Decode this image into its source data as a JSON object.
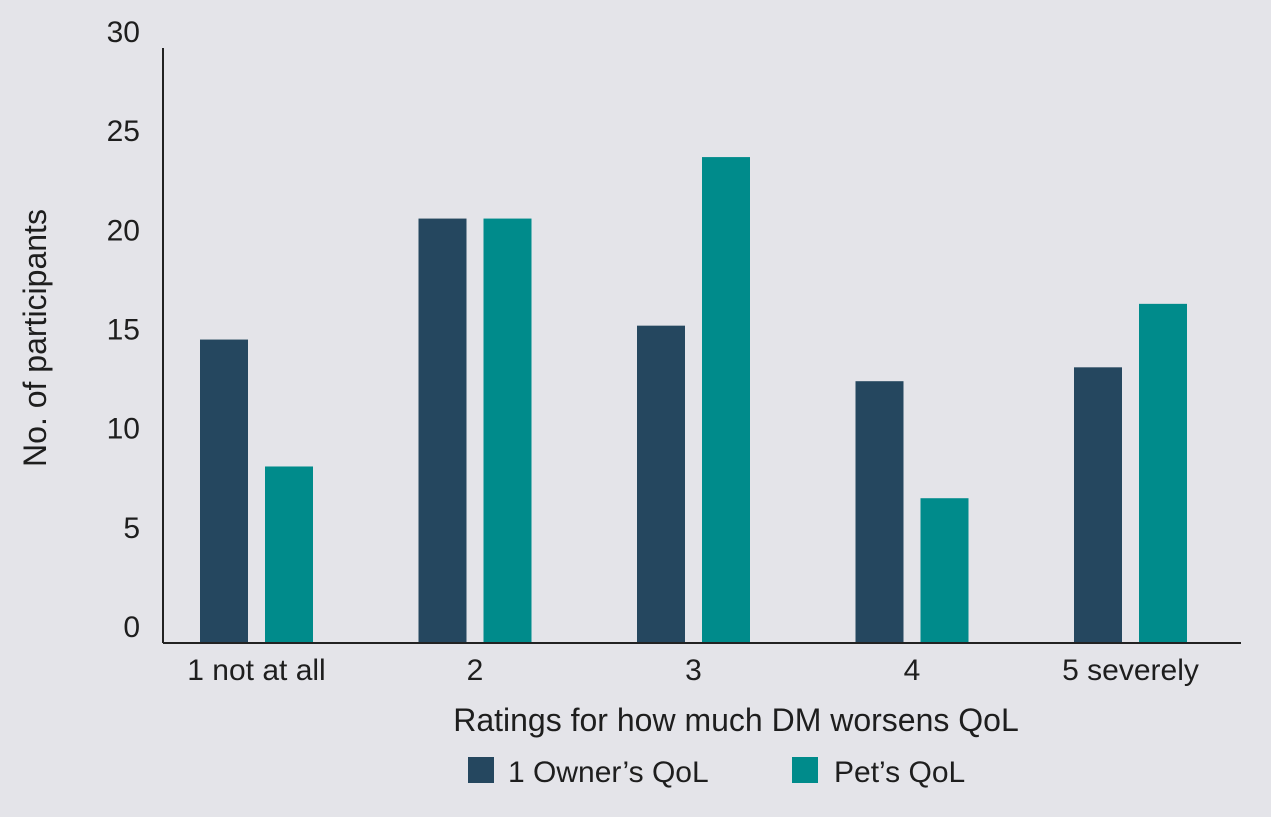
{
  "chart_data": {
    "type": "bar",
    "categories": [
      "1 not at all",
      "2",
      "3",
      "4",
      "5 severely"
    ],
    "series": [
      {
        "name": "1 Owner’s QoL",
        "color": "#25475f",
        "values": [
          15.3,
          21.4,
          16.0,
          13.2,
          13.9
        ]
      },
      {
        "name": "Pet’s QoL",
        "color": "#008b8b",
        "values": [
          8.9,
          21.4,
          24.5,
          7.3,
          17.1
        ]
      }
    ],
    "xlabel": "Ratings for how much DM worsens QoL",
    "ylabel": "No. of participants",
    "yticks": [
      "0",
      "5",
      "10",
      "15",
      "20",
      "25",
      "30"
    ],
    "ylim": [
      0,
      30
    ],
    "grid": false,
    "legend_position": "bottom-center"
  }
}
